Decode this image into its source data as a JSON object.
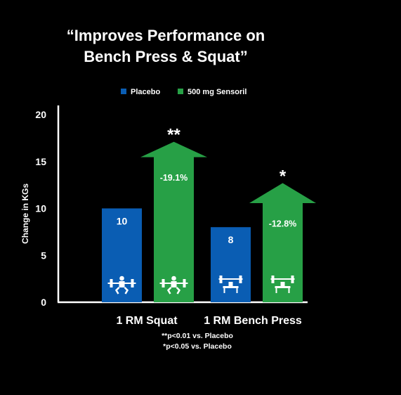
{
  "chart_data": {
    "type": "bar",
    "title_lines": [
      "“Improves Performance on",
      "Bench Press & Squat”"
    ],
    "ylabel": "Change in KGs",
    "ylim": [
      0,
      20
    ],
    "yticks": [
      0,
      5,
      10,
      15,
      20
    ],
    "categories": [
      "1 RM Squat",
      "1 RM Bench Press"
    ],
    "series": [
      {
        "name": "Placebo",
        "color": "#0a5db3",
        "values": [
          10,
          8
        ],
        "value_labels": [
          "10",
          "8"
        ],
        "icons": [
          "squat-icon",
          "bench-press-icon"
        ]
      },
      {
        "name": "500 mg Sensoril",
        "color": "#27a046",
        "values": [
          15.5,
          10.6
        ],
        "arrow_tip_values": [
          17.1,
          12.7
        ],
        "value_labels": [
          "-19.1%",
          "-12.8%"
        ],
        "significance": [
          "**",
          "*"
        ],
        "icons": [
          "squat-icon",
          "bench-press-icon"
        ]
      }
    ],
    "footnotes": [
      "**p<0.01 vs. Placebo",
      "*p<0.05 vs. Placebo"
    ],
    "legend_position": "top-center",
    "grid": false
  }
}
